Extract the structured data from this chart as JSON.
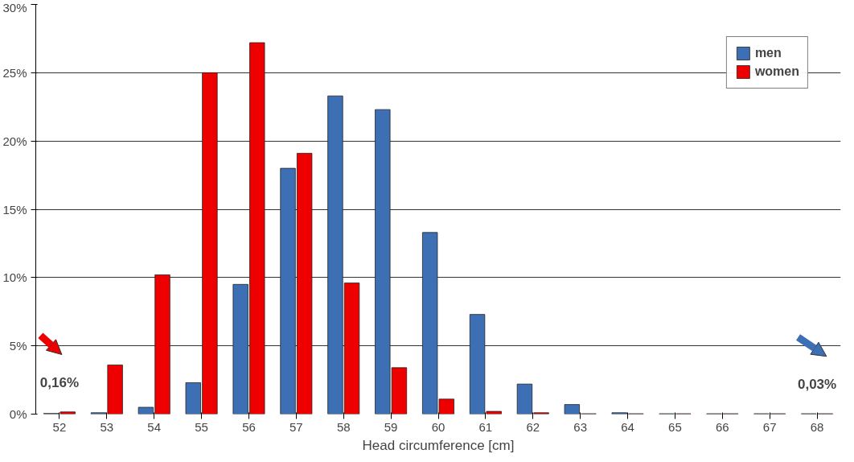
{
  "chart_data": {
    "type": "bar",
    "xlabel": "Head circumference [cm]",
    "categories": [
      "52",
      "53",
      "54",
      "55",
      "56",
      "57",
      "58",
      "59",
      "60",
      "61",
      "62",
      "63",
      "64",
      "65",
      "66",
      "67",
      "68"
    ],
    "series": [
      {
        "name": "men",
        "color": "#3d6fb5",
        "values": [
          0.05,
          0.1,
          0.5,
          2.3,
          9.5,
          18,
          23.3,
          22.3,
          13.3,
          7.3,
          2.2,
          0.7,
          0.1,
          0.03,
          0.03,
          0.03,
          0.03
        ]
      },
      {
        "name": "women",
        "color": "#ee0000",
        "values": [
          0.16,
          3.6,
          10.2,
          25,
          27.2,
          19.1,
          9.6,
          3.4,
          1.1,
          0.2,
          0.1,
          0.03,
          0.03,
          0.03,
          0.03,
          0.03,
          0.03
        ]
      }
    ],
    "ylim": [
      0,
      30
    ],
    "yticks": [
      {
        "value": 0,
        "label": "0%"
      },
      {
        "value": 5,
        "label": "5%"
      },
      {
        "value": 10,
        "label": "10%"
      },
      {
        "value": 15,
        "label": "15%"
      },
      {
        "value": 20,
        "label": "20%"
      },
      {
        "value": 25,
        "label": "25%"
      },
      {
        "value": 30,
        "label": "30%"
      }
    ],
    "grid": "y",
    "legend": "top right",
    "annotations": [
      {
        "text": "0,16%",
        "x": "52",
        "y": 0.16
      },
      {
        "text": "0,03%",
        "x": "68",
        "y": 0.03
      }
    ]
  }
}
